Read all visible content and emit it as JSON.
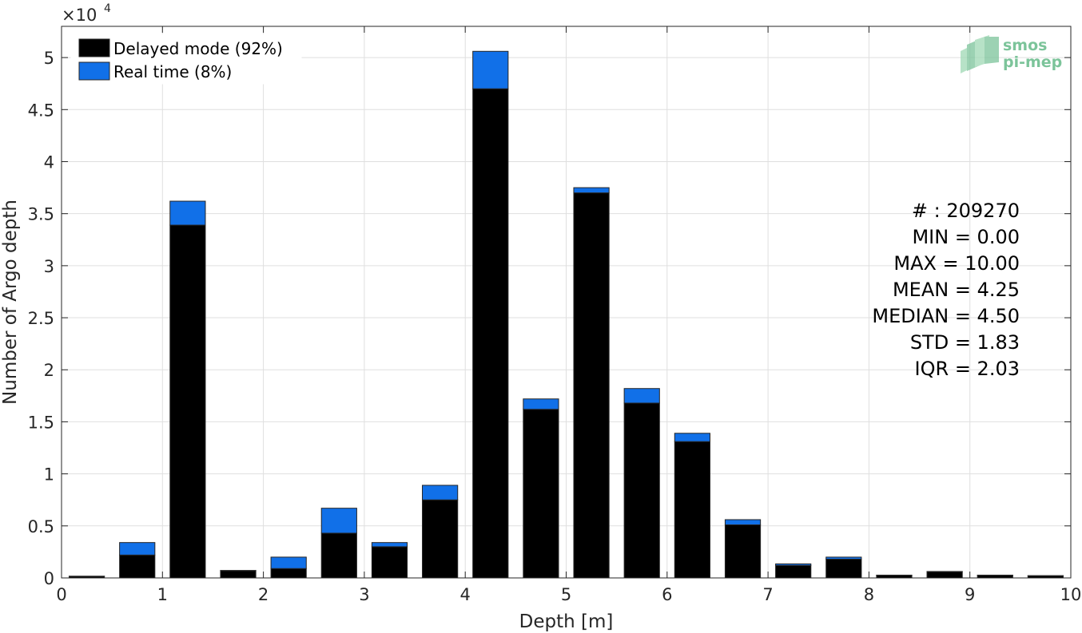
{
  "chart_data": {
    "type": "bar",
    "stacked": true,
    "x_centers": [
      0.25,
      0.75,
      1.25,
      1.75,
      2.25,
      2.75,
      3.25,
      3.75,
      4.25,
      4.75,
      5.25,
      5.75,
      6.25,
      6.75,
      7.25,
      7.75,
      8.25,
      8.75,
      9.25,
      9.75
    ],
    "series": [
      {
        "name": "Delayed mode (92%)",
        "color": "#000000",
        "values": [
          150,
          2200,
          33900,
          700,
          900,
          4300,
          3000,
          7500,
          47000,
          16200,
          37000,
          16800,
          13100,
          5100,
          1200,
          1800,
          250,
          600,
          250,
          200
        ]
      },
      {
        "name": "Real time (8%)",
        "color": "#1170e8",
        "values": [
          20,
          1200,
          2300,
          20,
          1100,
          2400,
          400,
          1400,
          3600,
          1000,
          500,
          1400,
          800,
          500,
          150,
          200,
          20,
          20,
          20,
          20
        ]
      }
    ],
    "xlabel": "Depth [m]",
    "ylabel": "Number of Argo depth",
    "xlim": [
      0,
      10
    ],
    "ylim": [
      0,
      53000
    ],
    "x_ticks": [
      "0",
      "1",
      "2",
      "3",
      "4",
      "5",
      "6",
      "7",
      "8",
      "9",
      "10"
    ],
    "y_ticks": [
      "0",
      "0.5",
      "1",
      "1.5",
      "2",
      "2.5",
      "3",
      "3.5",
      "4",
      "4.5",
      "5"
    ],
    "y_multiplier": "×10",
    "y_multiplier_exp": "4",
    "grid": true,
    "legend_position": "top-left",
    "stats": [
      "# : 209270",
      "MIN = 0.00",
      "MAX =  10.00",
      "MEAN = 4.25",
      "MEDIAN = 4.50",
      "STD = 1.83",
      "IQR = 2.03"
    ]
  },
  "logo": {
    "line1": "smos",
    "line2": "pi-mep",
    "color": "#7cc49a"
  }
}
